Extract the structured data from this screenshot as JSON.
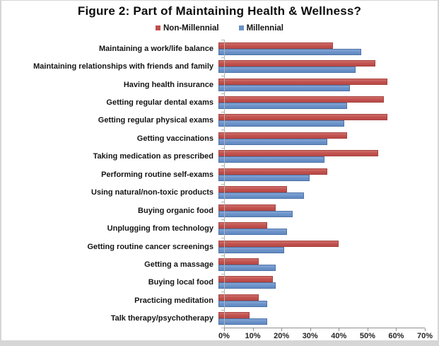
{
  "title": "Figure 2: Part of Maintaining Health & Wellness?",
  "legend": {
    "items": [
      {
        "label": "Non-Millennial",
        "color": "#c0504d"
      },
      {
        "label": "Millennial",
        "color": "#6a92c8"
      }
    ]
  },
  "chart_data": {
    "type": "bar",
    "orientation": "horizontal",
    "title": "Figure 2: Part of Maintaining Health & Wellness?",
    "categories": [
      "Maintaining a work/life balance",
      "Maintaining relationships with friends and family",
      "Having health insurance",
      "Getting regular dental exams",
      "Getting regular physical exams",
      "Getting vaccinations",
      "Taking medication as prescribed",
      "Performing routine self-exams",
      "Using natural/non-toxic products",
      "Buying organic food",
      "Unplugging from technology",
      "Getting routine cancer screenings",
      "Getting a massage",
      "Buying local food",
      "Practicing meditation",
      "Talk therapy/psychotherapy"
    ],
    "series": [
      {
        "name": "Non-Millennial",
        "color": "#c0504d",
        "values": [
          40,
          55,
          59,
          58,
          59,
          45,
          56,
          38,
          24,
          20,
          17,
          42,
          14,
          19,
          14,
          11
        ]
      },
      {
        "name": "Millennial",
        "color": "#6a92c8",
        "values": [
          50,
          48,
          46,
          45,
          44,
          38,
          37,
          32,
          30,
          26,
          24,
          23,
          20,
          20,
          17,
          17
        ]
      }
    ],
    "xlabel": "",
    "ylabel": "",
    "xlim": [
      0,
      70
    ],
    "x_tick_labels": [
      "0%",
      "10%",
      "20%",
      "30%",
      "40%",
      "50%",
      "60%",
      "70%"
    ],
    "unit": "%",
    "grid": false,
    "legend_position": "top"
  }
}
